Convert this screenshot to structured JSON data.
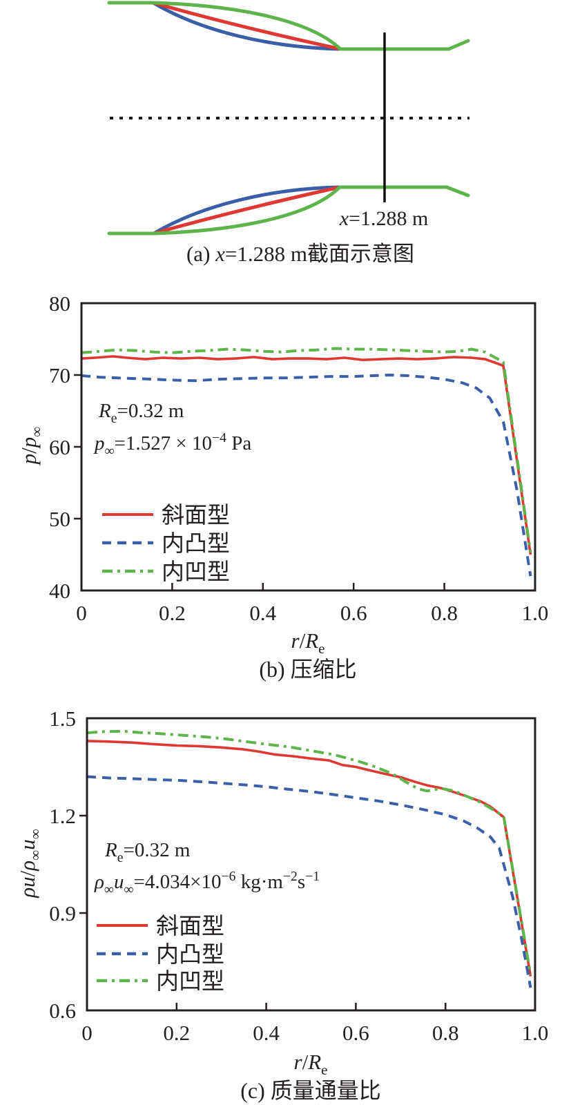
{
  "colors": {
    "ramp": "#df3832",
    "convex": "#3a5fa8",
    "concave": "#5db44a",
    "axis": "#231f20",
    "centerline": "#1a1a1a"
  },
  "panel_a": {
    "label_segments": [
      {
        "t": "x",
        "i": true
      },
      {
        "t": "=1.288 m"
      }
    ],
    "caption_segments": [
      {
        "t": "(a) "
      },
      {
        "t": "x",
        "i": true
      },
      {
        "t": "=1.288 m截面示意图"
      }
    ]
  },
  "chart_data": [
    {
      "id": "b",
      "type": "line",
      "title": "(b) 压缩比",
      "xlabel_segments": [
        {
          "t": "r",
          "i": true
        },
        {
          "t": "/"
        },
        {
          "t": "R",
          "i": true
        },
        {
          "t": "e",
          "sub": true
        }
      ],
      "ylabel_segments": [
        {
          "t": "p",
          "i": true
        },
        {
          "t": "/"
        },
        {
          "t": "p",
          "i": true
        },
        {
          "t": "∞",
          "sub": true
        }
      ],
      "xlim": [
        0,
        1.0
      ],
      "ylim": [
        40,
        80
      ],
      "xticks": [
        {
          "v": 0,
          "label": "0"
        },
        {
          "v": 0.2,
          "label": "0.2"
        },
        {
          "v": 0.4,
          "label": "0.4"
        },
        {
          "v": 0.6,
          "label": "0.6"
        },
        {
          "v": 0.8,
          "label": "0.8"
        },
        {
          "v": 1.0,
          "label": "1.0"
        }
      ],
      "yticks": [
        {
          "v": 40,
          "label": "40"
        },
        {
          "v": 50,
          "label": "50"
        },
        {
          "v": 60,
          "label": "60"
        },
        {
          "v": 70,
          "label": "70"
        },
        {
          "v": 80,
          "label": "80"
        }
      ],
      "grid": false,
      "legend_position": "lower-left-inside",
      "annotations": [
        [
          {
            "t": "R",
            "i": true
          },
          {
            "t": "e",
            "sub": true
          },
          {
            "t": "=0.32 m"
          }
        ],
        [
          {
            "t": "p",
            "i": true
          },
          {
            "t": "∞",
            "sub": true
          },
          {
            "t": "=1.527 × 10"
          },
          {
            "t": "−4",
            "sup": true
          },
          {
            "t": " Pa"
          }
        ]
      ],
      "legend": [
        {
          "label": "斜面型",
          "series": "ramp"
        },
        {
          "label": "内凸型",
          "series": "convex"
        },
        {
          "label": "内凹型",
          "series": "concave"
        }
      ],
      "series": [
        {
          "key": "ramp",
          "name": "斜面型",
          "color": "ramp",
          "style": "solid",
          "x": [
            0,
            0.03,
            0.07,
            0.1,
            0.14,
            0.18,
            0.22,
            0.26,
            0.3,
            0.34,
            0.38,
            0.42,
            0.46,
            0.5,
            0.54,
            0.58,
            0.62,
            0.66,
            0.7,
            0.74,
            0.78,
            0.82,
            0.86,
            0.89,
            0.93,
            0.99
          ],
          "y": [
            72.3,
            72.4,
            72.6,
            72.4,
            72.2,
            72.4,
            72.3,
            72.4,
            72.2,
            72.3,
            72.5,
            72.2,
            72.3,
            72.3,
            72.2,
            72.4,
            72.1,
            72.2,
            72.3,
            72.2,
            72.3,
            72.5,
            72.4,
            72.2,
            71.3,
            45.0
          ]
        },
        {
          "key": "convex",
          "name": "内凸型",
          "color": "convex",
          "style": "dashed",
          "x": [
            0,
            0.04,
            0.08,
            0.12,
            0.16,
            0.2,
            0.25,
            0.3,
            0.35,
            0.4,
            0.45,
            0.5,
            0.55,
            0.6,
            0.64,
            0.68,
            0.72,
            0.76,
            0.8,
            0.84,
            0.87,
            0.9,
            0.93,
            0.96,
            0.99
          ],
          "y": [
            69.9,
            69.7,
            69.6,
            69.5,
            69.4,
            69.3,
            69.2,
            69.4,
            69.5,
            69.6,
            69.6,
            69.7,
            69.8,
            69.8,
            69.9,
            70.0,
            69.9,
            69.7,
            69.4,
            68.9,
            68.2,
            66.8,
            63.5,
            54.0,
            42.0
          ]
        },
        {
          "key": "concave",
          "name": "内凹型",
          "color": "concave",
          "style": "dashdot",
          "x": [
            0,
            0.04,
            0.08,
            0.12,
            0.16,
            0.2,
            0.24,
            0.28,
            0.32,
            0.36,
            0.4,
            0.44,
            0.48,
            0.52,
            0.56,
            0.6,
            0.64,
            0.68,
            0.72,
            0.76,
            0.8,
            0.83,
            0.86,
            0.89,
            0.93,
            0.99
          ],
          "y": [
            73.1,
            73.3,
            73.5,
            73.4,
            73.2,
            73.1,
            73.3,
            73.4,
            73.6,
            73.5,
            73.3,
            73.2,
            73.4,
            73.5,
            73.7,
            73.6,
            73.6,
            73.5,
            73.4,
            73.3,
            73.2,
            73.3,
            73.6,
            73.2,
            71.8,
            45.3
          ]
        }
      ]
    },
    {
      "id": "c",
      "type": "line",
      "title": "(c) 质量通量比",
      "xlabel_segments": [
        {
          "t": "r",
          "i": true
        },
        {
          "t": "/"
        },
        {
          "t": "R",
          "i": true
        },
        {
          "t": "e",
          "sub": true
        }
      ],
      "ylabel_segments": [
        {
          "t": "ρu",
          "i": true
        },
        {
          "t": "/"
        },
        {
          "t": "ρ",
          "i": true
        },
        {
          "t": "∞",
          "sub": true
        },
        {
          "t": "u",
          "i": true
        },
        {
          "t": "∞",
          "sub": true
        }
      ],
      "xlim": [
        0,
        1.0
      ],
      "ylim": [
        0.6,
        1.5
      ],
      "xticks": [
        {
          "v": 0,
          "label": "0"
        },
        {
          "v": 0.2,
          "label": "0.2"
        },
        {
          "v": 0.4,
          "label": "0.4"
        },
        {
          "v": 0.6,
          "label": "0.6"
        },
        {
          "v": 0.8,
          "label": "0.8"
        },
        {
          "v": 1.0,
          "label": "1.0"
        }
      ],
      "yticks": [
        {
          "v": 0.6,
          "label": "0.6"
        },
        {
          "v": 0.9,
          "label": "0.9"
        },
        {
          "v": 1.2,
          "label": "1.2"
        },
        {
          "v": 1.5,
          "label": "1.5"
        }
      ],
      "grid": false,
      "legend_position": "lower-left-inside",
      "annotations": [
        [
          {
            "t": "R",
            "i": true
          },
          {
            "t": "e",
            "sub": true
          },
          {
            "t": "=0.32 m"
          }
        ],
        [
          {
            "t": "ρ",
            "i": true
          },
          {
            "t": "∞",
            "sub": true
          },
          {
            "t": "u",
            "i": true
          },
          {
            "t": "∞",
            "sub": true
          },
          {
            "t": "=4.034×10"
          },
          {
            "t": "−6",
            "sup": true
          },
          {
            "t": " kg·m"
          },
          {
            "t": "−2",
            "sup": true
          },
          {
            "t": "s"
          },
          {
            "t": "−1",
            "sup": true
          }
        ]
      ],
      "legend": [
        {
          "label": "斜面型",
          "series": "ramp"
        },
        {
          "label": "内凸型",
          "series": "convex"
        },
        {
          "label": "内凹型",
          "series": "concave"
        }
      ],
      "series": [
        {
          "key": "ramp",
          "name": "斜面型",
          "color": "ramp",
          "style": "solid",
          "x": [
            0,
            0.05,
            0.1,
            0.15,
            0.2,
            0.25,
            0.3,
            0.35,
            0.38,
            0.42,
            0.46,
            0.5,
            0.54,
            0.57,
            0.6,
            0.63,
            0.67,
            0.7,
            0.73,
            0.76,
            0.79,
            0.82,
            0.85,
            0.88,
            0.9,
            0.93,
            0.99
          ],
          "y": [
            1.43,
            1.428,
            1.425,
            1.42,
            1.416,
            1.414,
            1.41,
            1.404,
            1.398,
            1.388,
            1.383,
            1.376,
            1.37,
            1.356,
            1.35,
            1.34,
            1.327,
            1.318,
            1.305,
            1.293,
            1.285,
            1.272,
            1.258,
            1.243,
            1.228,
            1.195,
            0.705
          ]
        },
        {
          "key": "convex",
          "name": "内凸型",
          "color": "convex",
          "style": "dashed",
          "x": [
            0,
            0.05,
            0.1,
            0.15,
            0.2,
            0.25,
            0.3,
            0.35,
            0.4,
            0.45,
            0.5,
            0.55,
            0.6,
            0.65,
            0.7,
            0.75,
            0.8,
            0.84,
            0.87,
            0.9,
            0.92,
            0.95,
            0.97,
            0.99
          ],
          "y": [
            1.32,
            1.316,
            1.314,
            1.311,
            1.309,
            1.305,
            1.3,
            1.295,
            1.289,
            1.281,
            1.274,
            1.265,
            1.255,
            1.245,
            1.233,
            1.219,
            1.203,
            1.184,
            1.163,
            1.135,
            1.1,
            0.95,
            0.82,
            0.67
          ]
        },
        {
          "key": "concave",
          "name": "内凹型",
          "color": "concave",
          "style": "dashdot",
          "x": [
            0,
            0.04,
            0.08,
            0.12,
            0.16,
            0.2,
            0.25,
            0.3,
            0.35,
            0.4,
            0.45,
            0.5,
            0.55,
            0.6,
            0.64,
            0.68,
            0.71,
            0.74,
            0.76,
            0.79,
            0.82,
            0.85,
            0.88,
            0.91,
            0.93,
            0.99
          ],
          "y": [
            1.455,
            1.459,
            1.46,
            1.456,
            1.453,
            1.449,
            1.444,
            1.438,
            1.429,
            1.42,
            1.412,
            1.4,
            1.388,
            1.37,
            1.352,
            1.33,
            1.305,
            1.282,
            1.276,
            1.284,
            1.276,
            1.258,
            1.24,
            1.215,
            1.198,
            0.71
          ]
        }
      ]
    }
  ]
}
